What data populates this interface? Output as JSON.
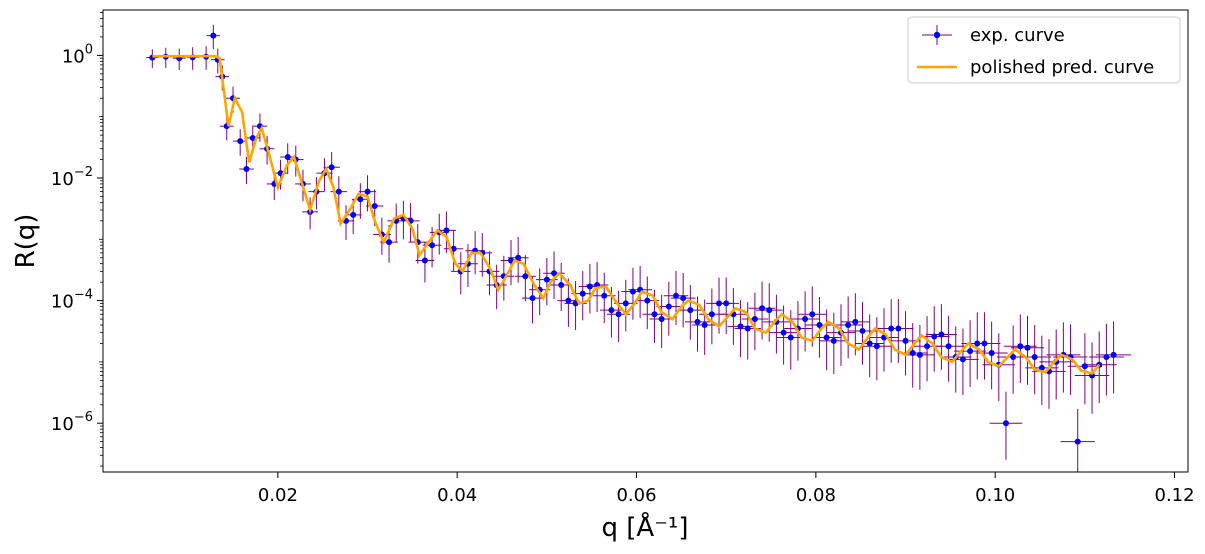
{
  "chart_data": {
    "type": "scatter",
    "xlabel": "q [Å⁻¹]",
    "ylabel": "R(q)",
    "y_scale": "log",
    "xlim": [
      0.0005,
      0.1215
    ],
    "ylim": [
      1.6e-07,
      5.5
    ],
    "x_ticks": [
      0.02,
      0.04,
      0.06,
      0.08,
      0.1,
      0.12
    ],
    "x_tick_labels": [
      "0.02",
      "0.04",
      "0.06",
      "0.08",
      "0.10",
      "0.12"
    ],
    "y_ticks": [
      1,
      0.01,
      0.0001,
      1e-06
    ],
    "y_tick_labels": [
      {
        "base": "10",
        "exp": "0"
      },
      {
        "base": "10",
        "exp": "−2"
      },
      {
        "base": "10",
        "exp": "−4"
      },
      {
        "base": "10",
        "exp": "−6"
      }
    ],
    "legend": {
      "position": "top-right",
      "entries": [
        {
          "label": "exp. curve",
          "style": "errorbar-point"
        },
        {
          "label": "polished pred. curve",
          "style": "line"
        }
      ]
    },
    "colors": {
      "exp_points": "#0000ff",
      "exp_errorbars": "#800080",
      "pred_curve": "#ffa500"
    },
    "series": [
      {
        "name": "exp. curve",
        "kind": "errorbar",
        "notes_source": "sampled from the plotted experimental curve",
        "x": [
          0.006,
          0.0075,
          0.009,
          0.0105,
          0.012,
          0.0128,
          0.0133,
          0.0138,
          0.0143,
          0.015,
          0.0158,
          0.0165,
          0.0172,
          0.018,
          0.0188,
          0.0196,
          0.0203,
          0.0211,
          0.022,
          0.0228,
          0.0236,
          0.0243,
          0.0252,
          0.026,
          0.0268,
          0.0276,
          0.0284,
          0.0292,
          0.03,
          0.0308,
          0.0316,
          0.0324,
          0.0332,
          0.034,
          0.0348,
          0.0356,
          0.0364,
          0.0372,
          0.038,
          0.0388,
          0.0396,
          0.0404,
          0.0412,
          0.042,
          0.0428,
          0.0436,
          0.0444,
          0.0452,
          0.046,
          0.0468,
          0.0476,
          0.0484,
          0.0492,
          0.05,
          0.0508,
          0.0516,
          0.0524,
          0.0532,
          0.054,
          0.0548,
          0.0556,
          0.0564,
          0.0572,
          0.058,
          0.0588,
          0.0596,
          0.0604,
          0.0612,
          0.062,
          0.0628,
          0.0636,
          0.0644,
          0.0652,
          0.066,
          0.0668,
          0.0676,
          0.0684,
          0.0692,
          0.07,
          0.0708,
          0.0716,
          0.0724,
          0.0732,
          0.074,
          0.0748,
          0.0756,
          0.0764,
          0.0772,
          0.078,
          0.0788,
          0.0796,
          0.0804,
          0.0812,
          0.082,
          0.0828,
          0.0836,
          0.0844,
          0.0852,
          0.086,
          0.0868,
          0.0876,
          0.0884,
          0.0892,
          0.09,
          0.0908,
          0.0916,
          0.0924,
          0.0932,
          0.094,
          0.0948,
          0.0956,
          0.0964,
          0.0972,
          0.098,
          0.0988,
          0.0996,
          0.1004,
          0.1012,
          0.102,
          0.1028,
          0.1036,
          0.1044,
          0.1052,
          0.106,
          0.1068,
          0.1076,
          0.1084,
          0.1092,
          0.11,
          0.1108,
          0.1116,
          0.1124,
          0.1132
        ],
        "y": [
          0.92,
          0.95,
          0.9,
          0.93,
          0.95,
          2.1,
          0.85,
          0.45,
          0.07,
          0.2,
          0.04,
          0.014,
          0.045,
          0.07,
          0.03,
          0.008,
          0.012,
          0.022,
          0.02,
          0.008,
          0.0028,
          0.006,
          0.012,
          0.015,
          0.006,
          0.002,
          0.0025,
          0.0045,
          0.006,
          0.0035,
          0.0012,
          0.0009,
          0.002,
          0.0022,
          0.002,
          0.0009,
          0.00045,
          0.0008,
          0.0013,
          0.0014,
          0.0007,
          0.0003,
          0.0004,
          0.00065,
          0.0006,
          0.0003,
          0.00018,
          0.00025,
          0.00045,
          0.0005,
          0.00025,
          0.00011,
          0.00015,
          0.00022,
          0.00028,
          0.00018,
          0.0001,
          9e-05,
          0.00013,
          0.00017,
          0.00018,
          0.00012,
          7e-05,
          6e-05,
          9e-05,
          0.00014,
          0.00015,
          0.0001,
          6e-05,
          5e-05,
          8e-05,
          0.00012,
          0.00011,
          7e-05,
          4.5e-05,
          4e-05,
          6e-05,
          9e-05,
          9e-05,
          6e-05,
          3.8e-05,
          3.5e-05,
          5e-05,
          7.5e-05,
          7e-05,
          4.5e-05,
          3e-05,
          2.5e-05,
          3.5e-05,
          5e-05,
          6e-05,
          4e-05,
          2.5e-05,
          2.2e-05,
          3e-05,
          4e-05,
          4.5e-05,
          3.2e-05,
          2e-05,
          1.8e-05,
          2.5e-05,
          3.5e-05,
          3.5e-05,
          2.2e-05,
          1.4e-05,
          1.3e-05,
          1.8e-05,
          2.6e-05,
          2.8e-05,
          1.8e-05,
          1.2e-05,
          1.1e-05,
          1.5e-05,
          2e-05,
          2e-05,
          1.4e-05,
          9e-06,
          1e-06,
          1.2e-05,
          1.8e-05,
          1.7e-05,
          1.2e-05,
          8e-06,
          7e-06,
          1e-05,
          1.3e-05,
          1.2e-05,
          5e-07,
          8.5e-06,
          6e-06,
          9e-06,
          1.2e-05,
          1.3e-05
        ]
      },
      {
        "name": "polished pred. curve",
        "kind": "line",
        "x": [
          0.006,
          0.009,
          0.012,
          0.013,
          0.0135,
          0.014,
          0.0145,
          0.0152,
          0.016,
          0.0168,
          0.0176,
          0.0182,
          0.019,
          0.02,
          0.021,
          0.0218,
          0.0226,
          0.0236,
          0.0246,
          0.0254,
          0.0262,
          0.027,
          0.028,
          0.029,
          0.03,
          0.0308,
          0.0318,
          0.033,
          0.034,
          0.035,
          0.0358,
          0.0368,
          0.0378,
          0.0388,
          0.0398,
          0.0406,
          0.0416,
          0.0426,
          0.0436,
          0.0446,
          0.0454,
          0.0464,
          0.0474,
          0.0486,
          0.0496,
          0.0504,
          0.0514,
          0.0526,
          0.0536,
          0.0546,
          0.0554,
          0.0566,
          0.0576,
          0.0588,
          0.0598,
          0.0606,
          0.0618,
          0.0628,
          0.064,
          0.065,
          0.0658,
          0.067,
          0.068,
          0.0692,
          0.0702,
          0.071,
          0.0722,
          0.0732,
          0.0744,
          0.0754,
          0.0762,
          0.0774,
          0.0784,
          0.0796,
          0.0806,
          0.0814,
          0.0826,
          0.0836,
          0.0848,
          0.0858,
          0.0866,
          0.0878,
          0.0888,
          0.09,
          0.091,
          0.0918,
          0.093,
          0.094,
          0.0952,
          0.0962,
          0.097,
          0.0982,
          0.0992,
          0.1004,
          0.1014,
          0.1022,
          0.1034,
          0.1044,
          0.1056,
          0.1066,
          0.1074,
          0.1086,
          0.1096,
          0.1108,
          0.1116
        ],
        "y": [
          0.97,
          0.97,
          0.97,
          0.97,
          0.9,
          0.25,
          0.07,
          0.2,
          0.12,
          0.018,
          0.045,
          0.065,
          0.025,
          0.007,
          0.016,
          0.022,
          0.009,
          0.003,
          0.009,
          0.014,
          0.007,
          0.0018,
          0.003,
          0.0055,
          0.005,
          0.002,
          0.0009,
          0.0022,
          0.0025,
          0.0015,
          0.00055,
          0.0009,
          0.0014,
          0.0011,
          0.0004,
          0.0003,
          0.0006,
          0.0006,
          0.00035,
          0.00015,
          0.00024,
          0.00045,
          0.0004,
          0.00018,
          0.00011,
          0.0002,
          0.00028,
          0.00018,
          9e-05,
          0.0001,
          0.00016,
          0.00017,
          0.0001,
          6e-05,
          9e-05,
          0.00014,
          0.00012,
          6.5e-05,
          5e-05,
          8e-05,
          0.0001,
          8.5e-05,
          5e-05,
          3.8e-05,
          5.5e-05,
          7.5e-05,
          6.5e-05,
          3.5e-05,
          3e-05,
          4.5e-05,
          6e-05,
          4.5e-05,
          2.5e-05,
          2.2e-05,
          3.5e-05,
          4.5e-05,
          3.5e-05,
          2e-05,
          1.6e-05,
          2.5e-05,
          3.5e-05,
          2.8e-05,
          1.6e-05,
          1.3e-05,
          2e-05,
          2.7e-05,
          2e-05,
          1.2e-05,
          1e-05,
          1.5e-05,
          2e-05,
          1.6e-05,
          1e-05,
          8.5e-06,
          1.2e-05,
          1.6e-05,
          1.2e-05,
          7.5e-06,
          6.8e-06,
          1e-05,
          1.3e-05,
          1.1e-05,
          7.2e-06,
          6.5e-06,
          9e-06
        ]
      }
    ]
  }
}
